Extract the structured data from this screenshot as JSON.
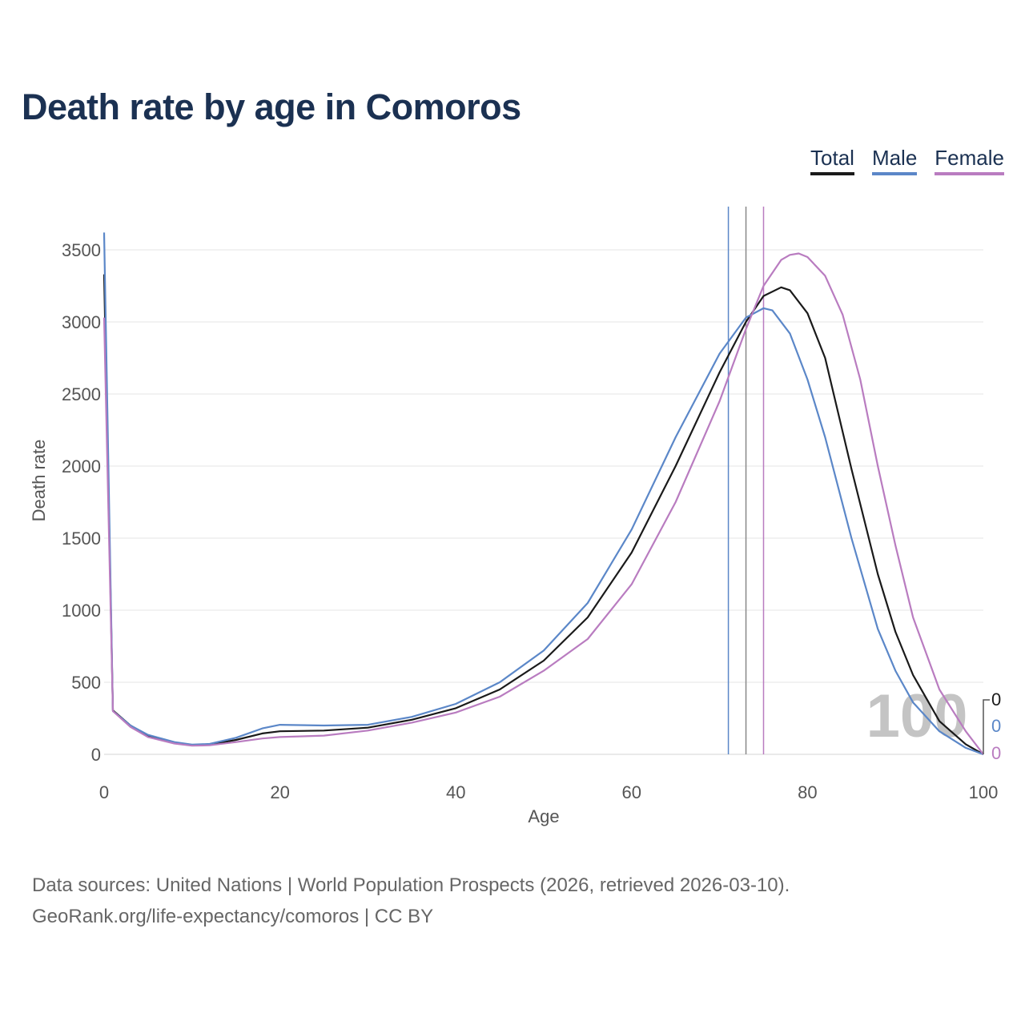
{
  "title": "Death rate by age in Comoros",
  "legend": [
    {
      "label": "Total",
      "color": "#1a1a1a"
    },
    {
      "label": "Male",
      "color": "#5b87c8"
    },
    {
      "label": "Female",
      "color": "#b97cc0"
    }
  ],
  "footer": {
    "source": "Data sources: United Nations | World Population Prospects (2026, retrieved 2026-03-10).",
    "link": "GeoRank.org/life-expectancy/comoros | CC BY"
  },
  "chart_data": {
    "type": "line",
    "title": "Death rate by age in Comoros",
    "xlabel": "Age",
    "ylabel": "Death rate",
    "xlim": [
      0,
      100
    ],
    "ylim": [
      0,
      3700
    ],
    "xticks": [
      0,
      20,
      40,
      60,
      80,
      100
    ],
    "yticks": [
      0,
      500,
      1000,
      1500,
      2000,
      2500,
      3000,
      3500
    ],
    "grid": true,
    "legend_position": "top-right",
    "series": [
      {
        "name": "Total",
        "color": "#1a1a1a",
        "x": [
          0,
          1,
          3,
          5,
          8,
          10,
          12,
          15,
          18,
          20,
          25,
          30,
          35,
          40,
          45,
          50,
          55,
          60,
          65,
          70,
          73,
          75,
          77,
          78,
          80,
          82,
          85,
          88,
          90,
          92,
          95,
          98,
          100
        ],
        "y": [
          3330,
          305,
          200,
          130,
          80,
          65,
          68,
          100,
          145,
          160,
          165,
          185,
          240,
          320,
          450,
          650,
          950,
          1400,
          2000,
          2650,
          3000,
          3180,
          3240,
          3220,
          3060,
          2750,
          1980,
          1250,
          850,
          550,
          230,
          70,
          0
        ]
      },
      {
        "name": "Male",
        "color": "#5b87c8",
        "x": [
          0,
          1,
          3,
          5,
          8,
          10,
          12,
          15,
          18,
          20,
          25,
          30,
          35,
          40,
          45,
          50,
          55,
          60,
          65,
          70,
          73,
          75,
          76,
          78,
          80,
          82,
          85,
          88,
          90,
          92,
          95,
          98,
          100
        ],
        "y": [
          3620,
          300,
          200,
          135,
          85,
          67,
          72,
          115,
          180,
          205,
          200,
          205,
          260,
          350,
          500,
          720,
          1050,
          1560,
          2200,
          2780,
          3030,
          3095,
          3080,
          2920,
          2600,
          2200,
          1500,
          870,
          580,
          360,
          160,
          45,
          0
        ]
      },
      {
        "name": "Female",
        "color": "#b97cc0",
        "x": [
          0,
          1,
          3,
          5,
          8,
          10,
          12,
          15,
          18,
          20,
          25,
          30,
          35,
          40,
          45,
          50,
          55,
          60,
          65,
          70,
          73,
          75,
          77,
          78,
          79,
          80,
          82,
          84,
          86,
          88,
          90,
          92,
          95,
          98,
          100
        ],
        "y": [
          3030,
          300,
          190,
          120,
          75,
          60,
          63,
          85,
          110,
          120,
          130,
          165,
          220,
          290,
          400,
          580,
          800,
          1180,
          1750,
          2450,
          2950,
          3250,
          3430,
          3465,
          3475,
          3450,
          3320,
          3050,
          2600,
          2000,
          1450,
          950,
          450,
          160,
          0
        ]
      }
    ],
    "reference_lines": [
      {
        "name": "Male",
        "x": 71,
        "color": "#5b87c8"
      },
      {
        "name": "Total",
        "x": 73,
        "color": "#888888"
      },
      {
        "name": "Female",
        "x": 75,
        "color": "#b97cc0"
      }
    ],
    "annotation": {
      "year_label": "100",
      "end_values": [
        {
          "series": "Total",
          "label": "0",
          "color": "#1a1a1a"
        },
        {
          "series": "Male",
          "label": "0",
          "color": "#5b87c8"
        },
        {
          "series": "Female",
          "label": "0",
          "color": "#b97cc0"
        }
      ]
    }
  }
}
